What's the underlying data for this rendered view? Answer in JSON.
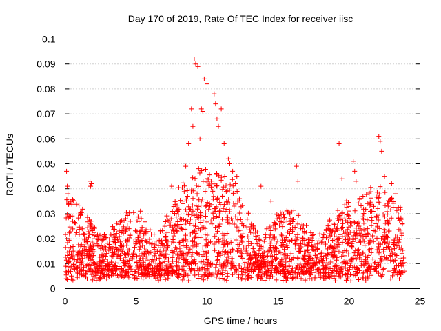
{
  "chart_data": {
    "type": "scatter",
    "title": "Day 170 of 2019, Rate Of TEC Index for receiver iisc",
    "xlabel": "GPS time / hours",
    "ylabel": "ROTI / TECUs",
    "xlim": [
      0,
      25
    ],
    "ylim": [
      0,
      0.1
    ],
    "x_ticks": [
      0,
      5,
      10,
      15,
      20,
      25
    ],
    "x_tick_labels": [
      "0",
      "5",
      "10",
      "15",
      "20",
      "25"
    ],
    "y_ticks": [
      0,
      0.01,
      0.02,
      0.03,
      0.04,
      0.05,
      0.06,
      0.07,
      0.08,
      0.09,
      0.1
    ],
    "y_tick_labels": [
      "0",
      "0.01",
      "0.02",
      "0.03",
      "0.04",
      "0.05",
      "0.06",
      "0.07",
      "0.08",
      "0.09",
      "0.1"
    ],
    "grid": true,
    "marker": "+",
    "marker_color": "#ff0000",
    "series": [
      {
        "name": "ROTI",
        "x": [
          0.1,
          0.15,
          0.2,
          0.25,
          0.3,
          1.75,
          1.8,
          1.85,
          1.8,
          5.3,
          7.5,
          8.5,
          8.7,
          8.9,
          9.0,
          9.1,
          9.2,
          9.35,
          9.5,
          9.6,
          9.7,
          9.8,
          10.0,
          10.5,
          10.6,
          10.7,
          10.8,
          11.0,
          11.2,
          11.5,
          11.6,
          11.8,
          12.0,
          12.1,
          13.8,
          14.5,
          16.3,
          16.4,
          19.3,
          19.5,
          20.3,
          20.4,
          20.5,
          22.1,
          22.2,
          22.3,
          22.5,
          23.0,
          23.3,
          23.5,
          0.5,
          1.0,
          1.5,
          2.2,
          2.5,
          3.0,
          3.3,
          3.8,
          4.2,
          4.5,
          4.8,
          5.1,
          5.5,
          5.8,
          6.2,
          6.5,
          6.8,
          7.1,
          7.3,
          7.7,
          7.9,
          8.1,
          8.3,
          8.6,
          8.8,
          9.0,
          9.3,
          9.4,
          9.6,
          9.9,
          10.2,
          10.4,
          10.8,
          11.1,
          11.4,
          11.7,
          12.2,
          12.5,
          12.8,
          13.1,
          13.4,
          13.7,
          14.0,
          14.3,
          14.6,
          14.9,
          15.2,
          15.5,
          15.8,
          16.1,
          16.6,
          16.9,
          17.2,
          17.5,
          17.8,
          18.1,
          18.4,
          18.7,
          19.0,
          19.7,
          20.0,
          20.7,
          21.0,
          21.3,
          21.6,
          21.9,
          22.4,
          22.7,
          23.2,
          23.6,
          23.8
        ],
        "y": [
          0.047,
          0.041,
          0.038,
          0.034,
          0.029,
          0.043,
          0.041,
          0.042,
          0.025,
          0.031,
          0.041,
          0.049,
          0.058,
          0.072,
          0.065,
          0.092,
          0.09,
          0.089,
          0.06,
          0.072,
          0.071,
          0.084,
          0.082,
          0.078,
          0.074,
          0.068,
          0.065,
          0.072,
          0.058,
          0.052,
          0.05,
          0.047,
          0.042,
          0.045,
          0.041,
          0.035,
          0.049,
          0.043,
          0.058,
          0.044,
          0.051,
          0.047,
          0.043,
          0.061,
          0.059,
          0.055,
          0.045,
          0.042,
          0.038,
          0.028,
          0.012,
          0.015,
          0.009,
          0.021,
          0.016,
          0.011,
          0.019,
          0.013,
          0.01,
          0.024,
          0.014,
          0.009,
          0.012,
          0.008,
          0.011,
          0.015,
          0.018,
          0.021,
          0.027,
          0.022,
          0.025,
          0.028,
          0.034,
          0.019,
          0.026,
          0.031,
          0.038,
          0.024,
          0.035,
          0.029,
          0.033,
          0.039,
          0.025,
          0.022,
          0.019,
          0.028,
          0.016,
          0.021,
          0.014,
          0.018,
          0.012,
          0.017,
          0.011,
          0.015,
          0.013,
          0.016,
          0.01,
          0.014,
          0.009,
          0.012,
          0.015,
          0.011,
          0.013,
          0.01,
          0.016,
          0.014,
          0.012,
          0.017,
          0.015,
          0.022,
          0.018,
          0.025,
          0.028,
          0.024,
          0.031,
          0.026,
          0.021,
          0.019,
          0.016,
          0.012,
          0.01
        ]
      }
    ]
  }
}
